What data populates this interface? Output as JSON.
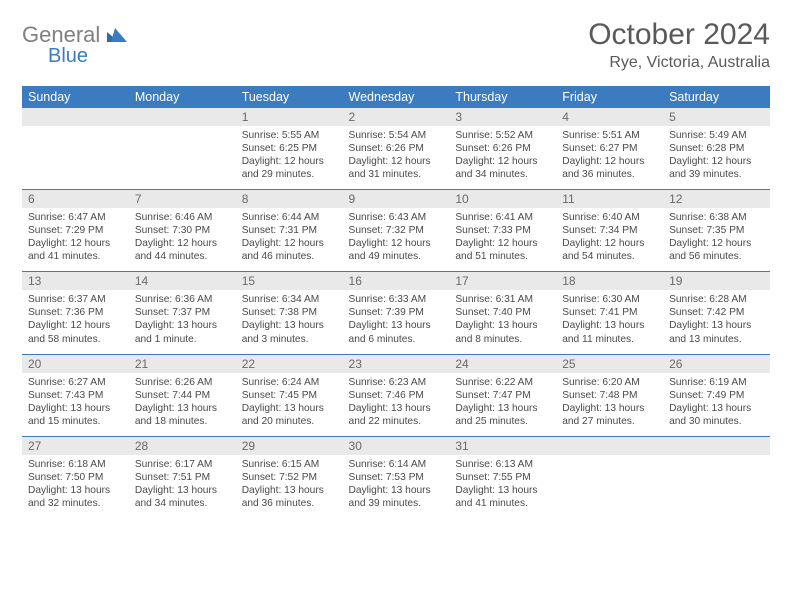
{
  "brand": {
    "word1": "General",
    "word2": "Blue"
  },
  "title": "October 2024",
  "location": "Rye, Victoria, Australia",
  "colors": {
    "header_bg": "#3b7bbf",
    "header_text": "#ffffff",
    "daynum_bg": "#e9e9e9",
    "row_border": "#3b7bbf",
    "text": "#4a4a4a",
    "title_text": "#5a5a5a",
    "logo_gray": "#808080",
    "logo_blue": "#3b7bbf",
    "background": "#ffffff"
  },
  "columns": [
    "Sunday",
    "Monday",
    "Tuesday",
    "Wednesday",
    "Thursday",
    "Friday",
    "Saturday"
  ],
  "weeks": [
    [
      null,
      null,
      {
        "n": "1",
        "sr": "5:55 AM",
        "ss": "6:25 PM",
        "dl": "12 hours and 29 minutes."
      },
      {
        "n": "2",
        "sr": "5:54 AM",
        "ss": "6:26 PM",
        "dl": "12 hours and 31 minutes."
      },
      {
        "n": "3",
        "sr": "5:52 AM",
        "ss": "6:26 PM",
        "dl": "12 hours and 34 minutes."
      },
      {
        "n": "4",
        "sr": "5:51 AM",
        "ss": "6:27 PM",
        "dl": "12 hours and 36 minutes."
      },
      {
        "n": "5",
        "sr": "5:49 AM",
        "ss": "6:28 PM",
        "dl": "12 hours and 39 minutes."
      }
    ],
    [
      {
        "n": "6",
        "sr": "6:47 AM",
        "ss": "7:29 PM",
        "dl": "12 hours and 41 minutes."
      },
      {
        "n": "7",
        "sr": "6:46 AM",
        "ss": "7:30 PM",
        "dl": "12 hours and 44 minutes."
      },
      {
        "n": "8",
        "sr": "6:44 AM",
        "ss": "7:31 PM",
        "dl": "12 hours and 46 minutes."
      },
      {
        "n": "9",
        "sr": "6:43 AM",
        "ss": "7:32 PM",
        "dl": "12 hours and 49 minutes."
      },
      {
        "n": "10",
        "sr": "6:41 AM",
        "ss": "7:33 PM",
        "dl": "12 hours and 51 minutes."
      },
      {
        "n": "11",
        "sr": "6:40 AM",
        "ss": "7:34 PM",
        "dl": "12 hours and 54 minutes."
      },
      {
        "n": "12",
        "sr": "6:38 AM",
        "ss": "7:35 PM",
        "dl": "12 hours and 56 minutes."
      }
    ],
    [
      {
        "n": "13",
        "sr": "6:37 AM",
        "ss": "7:36 PM",
        "dl": "12 hours and 58 minutes."
      },
      {
        "n": "14",
        "sr": "6:36 AM",
        "ss": "7:37 PM",
        "dl": "13 hours and 1 minute."
      },
      {
        "n": "15",
        "sr": "6:34 AM",
        "ss": "7:38 PM",
        "dl": "13 hours and 3 minutes."
      },
      {
        "n": "16",
        "sr": "6:33 AM",
        "ss": "7:39 PM",
        "dl": "13 hours and 6 minutes."
      },
      {
        "n": "17",
        "sr": "6:31 AM",
        "ss": "7:40 PM",
        "dl": "13 hours and 8 minutes."
      },
      {
        "n": "18",
        "sr": "6:30 AM",
        "ss": "7:41 PM",
        "dl": "13 hours and 11 minutes."
      },
      {
        "n": "19",
        "sr": "6:28 AM",
        "ss": "7:42 PM",
        "dl": "13 hours and 13 minutes."
      }
    ],
    [
      {
        "n": "20",
        "sr": "6:27 AM",
        "ss": "7:43 PM",
        "dl": "13 hours and 15 minutes."
      },
      {
        "n": "21",
        "sr": "6:26 AM",
        "ss": "7:44 PM",
        "dl": "13 hours and 18 minutes."
      },
      {
        "n": "22",
        "sr": "6:24 AM",
        "ss": "7:45 PM",
        "dl": "13 hours and 20 minutes."
      },
      {
        "n": "23",
        "sr": "6:23 AM",
        "ss": "7:46 PM",
        "dl": "13 hours and 22 minutes."
      },
      {
        "n": "24",
        "sr": "6:22 AM",
        "ss": "7:47 PM",
        "dl": "13 hours and 25 minutes."
      },
      {
        "n": "25",
        "sr": "6:20 AM",
        "ss": "7:48 PM",
        "dl": "13 hours and 27 minutes."
      },
      {
        "n": "26",
        "sr": "6:19 AM",
        "ss": "7:49 PM",
        "dl": "13 hours and 30 minutes."
      }
    ],
    [
      {
        "n": "27",
        "sr": "6:18 AM",
        "ss": "7:50 PM",
        "dl": "13 hours and 32 minutes."
      },
      {
        "n": "28",
        "sr": "6:17 AM",
        "ss": "7:51 PM",
        "dl": "13 hours and 34 minutes."
      },
      {
        "n": "29",
        "sr": "6:15 AM",
        "ss": "7:52 PM",
        "dl": "13 hours and 36 minutes."
      },
      {
        "n": "30",
        "sr": "6:14 AM",
        "ss": "7:53 PM",
        "dl": "13 hours and 39 minutes."
      },
      {
        "n": "31",
        "sr": "6:13 AM",
        "ss": "7:55 PM",
        "dl": "13 hours and 41 minutes."
      },
      null,
      null
    ]
  ],
  "labels": {
    "sunrise": "Sunrise:",
    "sunset": "Sunset:",
    "daylight": "Daylight:"
  }
}
